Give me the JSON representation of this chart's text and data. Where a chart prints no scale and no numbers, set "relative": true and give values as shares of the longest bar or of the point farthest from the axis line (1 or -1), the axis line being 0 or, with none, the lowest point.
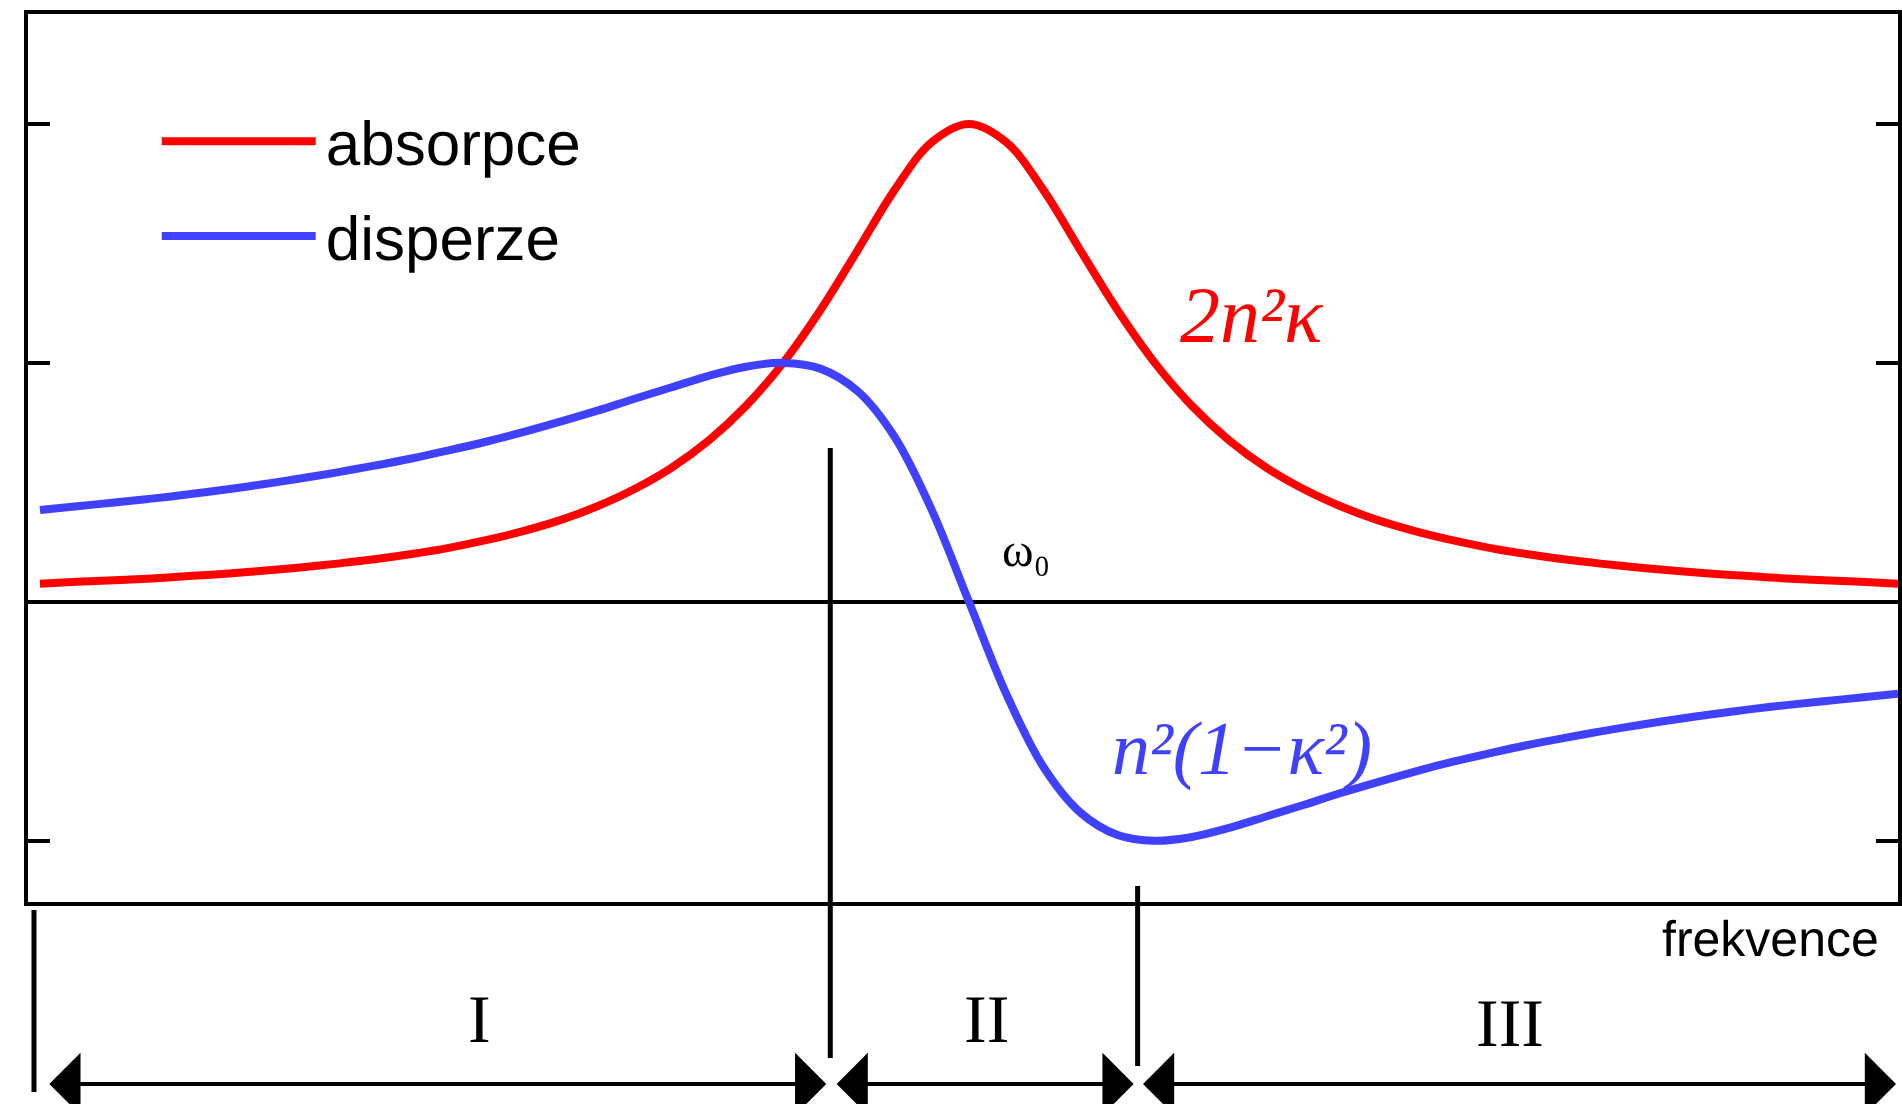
{
  "chart_data": {
    "type": "line",
    "relative": true,
    "xlabel": "frekvence",
    "legend": "top left",
    "line_style": "solid",
    "categories": [
      null,
      null,
      null,
      null,
      null,
      null,
      null,
      null,
      null,
      null,
      null,
      null,
      null,
      null,
      null,
      null,
      null,
      null,
      null,
      null,
      null,
      null,
      null,
      null,
      null,
      null,
      null,
      null,
      null,
      null,
      null,
      null,
      null,
      null,
      null,
      null,
      null,
      null,
      null,
      null,
      null,
      null,
      null,
      null,
      null,
      null,
      null,
      null,
      null,
      null,
      null
    ],
    "series": [
      {
        "name": "absorpce",
        "color": "#ff0000",
        "values": [
          0.038,
          0.042,
          0.045,
          0.049,
          0.054,
          0.059,
          0.065,
          0.072,
          0.08,
          0.089,
          0.1,
          0.113,
          0.129,
          0.148,
          0.171,
          0.2,
          0.236,
          0.281,
          0.338,
          0.41,
          0.5,
          0.61,
          0.735,
          0.862,
          0.962,
          1.0,
          0.962,
          0.862,
          0.735,
          0.61,
          0.5,
          0.41,
          0.338,
          0.281,
          0.236,
          0.2,
          0.171,
          0.148,
          0.129,
          0.113,
          0.1,
          0.089,
          0.08,
          0.072,
          0.065,
          0.059,
          0.054,
          0.049,
          0.045,
          0.042,
          0.038
        ]
      },
      {
        "name": "disperze",
        "color": "#4040ff",
        "values": [
          0.192,
          0.2,
          0.208,
          0.216,
          0.225,
          0.235,
          0.246,
          0.258,
          0.271,
          0.285,
          0.3,
          0.317,
          0.335,
          0.355,
          0.377,
          0.4,
          0.425,
          0.449,
          0.473,
          0.492,
          0.5,
          0.488,
          0.441,
          0.345,
          0.192,
          0,
          -0.192,
          -0.345,
          -0.441,
          -0.488,
          -0.5,
          -0.492,
          -0.473,
          -0.449,
          -0.425,
          -0.4,
          -0.377,
          -0.355,
          -0.335,
          -0.317,
          -0.3,
          -0.285,
          -0.271,
          -0.258,
          -0.246,
          -0.235,
          -0.225,
          -0.216,
          -0.208,
          -0.2,
          -0.192
        ]
      }
    ],
    "annotations": [
      "2n²κ",
      "n²(1−κ²)",
      "ω₀",
      "I",
      "II",
      "III"
    ]
  }
}
